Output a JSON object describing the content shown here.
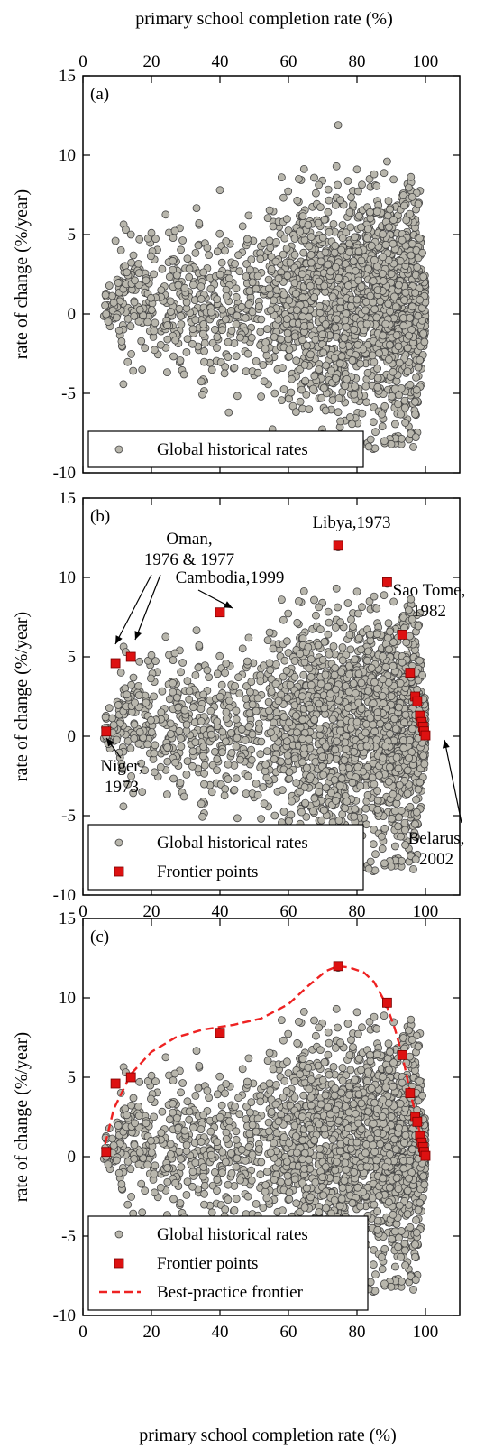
{
  "figure": {
    "top_axis_label": "primary school completion rate (%)",
    "bottom_axis_label": "primary school completion rate (%)"
  },
  "chart_data": [
    {
      "type": "scatter",
      "panel_label": "(a)",
      "xlim": [
        0,
        110
      ],
      "ylim": [
        -10,
        15
      ],
      "x_ticks": [
        "0",
        "20",
        "40",
        "60",
        "80",
        "100"
      ],
      "x_tick_values": [
        0,
        20,
        40,
        60,
        80,
        100
      ],
      "x_ticks_position": "top",
      "y_ticks": [
        "-10",
        "-5",
        "0",
        "5",
        "10",
        "15"
      ],
      "y_tick_values": [
        -10,
        -5,
        0,
        5,
        10,
        15
      ],
      "ylabel": "rate of change (%/year)",
      "grid": false,
      "legend_position": "bottom-left",
      "cloud_seed": 11,
      "series": [
        {
          "name": "Global historical rates",
          "marker": "circle",
          "color": "#b8b6ac",
          "stroke": "#444444",
          "points": []
        }
      ]
    },
    {
      "type": "scatter",
      "panel_label": "(b)",
      "xlim": [
        0,
        110
      ],
      "ylim": [
        -10,
        15
      ],
      "x_ticks": [
        "0",
        "20",
        "40",
        "60",
        "80",
        "100"
      ],
      "x_tick_values": [
        0,
        20,
        40,
        60,
        80,
        100
      ],
      "x_ticks_position": "bottom",
      "y_ticks": [
        "-10",
        "-5",
        "0",
        "5",
        "10",
        "15"
      ],
      "y_tick_values": [
        -10,
        -5,
        0,
        5,
        10,
        15
      ],
      "ylabel": "rate of change (%/year)",
      "grid": false,
      "legend_position": "bottom-left",
      "cloud_seed": 11,
      "series": [
        {
          "name": "Global historical rates",
          "marker": "circle",
          "color": "#b8b6ac",
          "stroke": "#444444",
          "points": []
        },
        {
          "name": "Frontier points",
          "marker": "square",
          "color": "#dd1111",
          "stroke": "#7a0000",
          "points": [
            [
              6.8,
              0.3
            ],
            [
              9.5,
              4.6
            ],
            [
              14,
              5
            ],
            [
              40,
              7.8
            ],
            [
              74.5,
              12
            ],
            [
              88.8,
              9.7
            ],
            [
              93.2,
              6.4
            ],
            [
              95.5,
              4
            ],
            [
              97,
              2.5
            ],
            [
              97.6,
              2.2
            ],
            [
              98.4,
              1.3
            ],
            [
              98.9,
              0.9
            ],
            [
              99.3,
              0.6
            ],
            [
              99.6,
              0.3
            ],
            [
              100,
              0.05
            ]
          ]
        }
      ],
      "annotations": [
        {
          "id": "oman",
          "lines": [
            "Oman,",
            "1976 & 1977"
          ]
        },
        {
          "id": "cambodia",
          "lines": [
            "Cambodia,1999"
          ]
        },
        {
          "id": "libya",
          "lines": [
            "Libya,1973"
          ]
        },
        {
          "id": "saotome",
          "lines": [
            "Sao Tome,",
            "1982"
          ]
        },
        {
          "id": "niger",
          "lines": [
            "Niger,",
            "1973"
          ]
        },
        {
          "id": "belarus",
          "lines": [
            "Belarus,",
            "2002"
          ]
        }
      ]
    },
    {
      "type": "scatter",
      "panel_label": "(c)",
      "xlim": [
        0,
        110
      ],
      "ylim": [
        -10,
        15
      ],
      "x_ticks": [
        "0",
        "20",
        "40",
        "60",
        "80",
        "100"
      ],
      "x_tick_values": [
        0,
        20,
        40,
        60,
        80,
        100
      ],
      "x_ticks_position": "bottom",
      "y_ticks": [
        "-10",
        "-5",
        "0",
        "5",
        "10",
        "15"
      ],
      "y_tick_values": [
        -10,
        -5,
        0,
        5,
        10,
        15
      ],
      "ylabel": "rate of change (%/year)",
      "grid": false,
      "legend_position": "bottom-left",
      "cloud_seed": 11,
      "series": [
        {
          "name": "Global historical rates",
          "marker": "circle",
          "color": "#b8b6ac",
          "stroke": "#444444",
          "points": []
        },
        {
          "name": "Frontier points",
          "marker": "square",
          "color": "#dd1111",
          "stroke": "#7a0000",
          "points": [
            [
              6.8,
              0.3
            ],
            [
              9.5,
              4.6
            ],
            [
              14,
              5
            ],
            [
              40,
              7.8
            ],
            [
              74.5,
              12
            ],
            [
              88.8,
              9.7
            ],
            [
              93.2,
              6.4
            ],
            [
              95.5,
              4
            ],
            [
              97,
              2.5
            ],
            [
              97.6,
              2.2
            ],
            [
              98.4,
              1.3
            ],
            [
              98.9,
              0.9
            ],
            [
              99.3,
              0.6
            ],
            [
              99.6,
              0.3
            ],
            [
              100,
              0.05
            ]
          ]
        },
        {
          "name": "Best-practice frontier",
          "marker": "dashed-line",
          "color": "#ee2222",
          "points": [
            [
              6.5,
              0.8
            ],
            [
              9,
              3
            ],
            [
              14,
              5.2
            ],
            [
              20,
              6.6
            ],
            [
              27,
              7.5
            ],
            [
              35,
              8
            ],
            [
              44,
              8.3
            ],
            [
              52,
              8.7
            ],
            [
              60,
              9.6
            ],
            [
              66,
              10.8
            ],
            [
              71,
              11.7
            ],
            [
              74.5,
              12
            ],
            [
              78,
              11.9
            ],
            [
              82,
              11.6
            ],
            [
              85,
              11
            ],
            [
              88.5,
              9.6
            ],
            [
              91,
              8.1
            ],
            [
              93.2,
              6.4
            ],
            [
              95.5,
              4.1
            ],
            [
              97.5,
              2.3
            ],
            [
              98.8,
              1.1
            ],
            [
              99.6,
              0.4
            ],
            [
              100,
              0.05
            ]
          ]
        }
      ]
    }
  ]
}
